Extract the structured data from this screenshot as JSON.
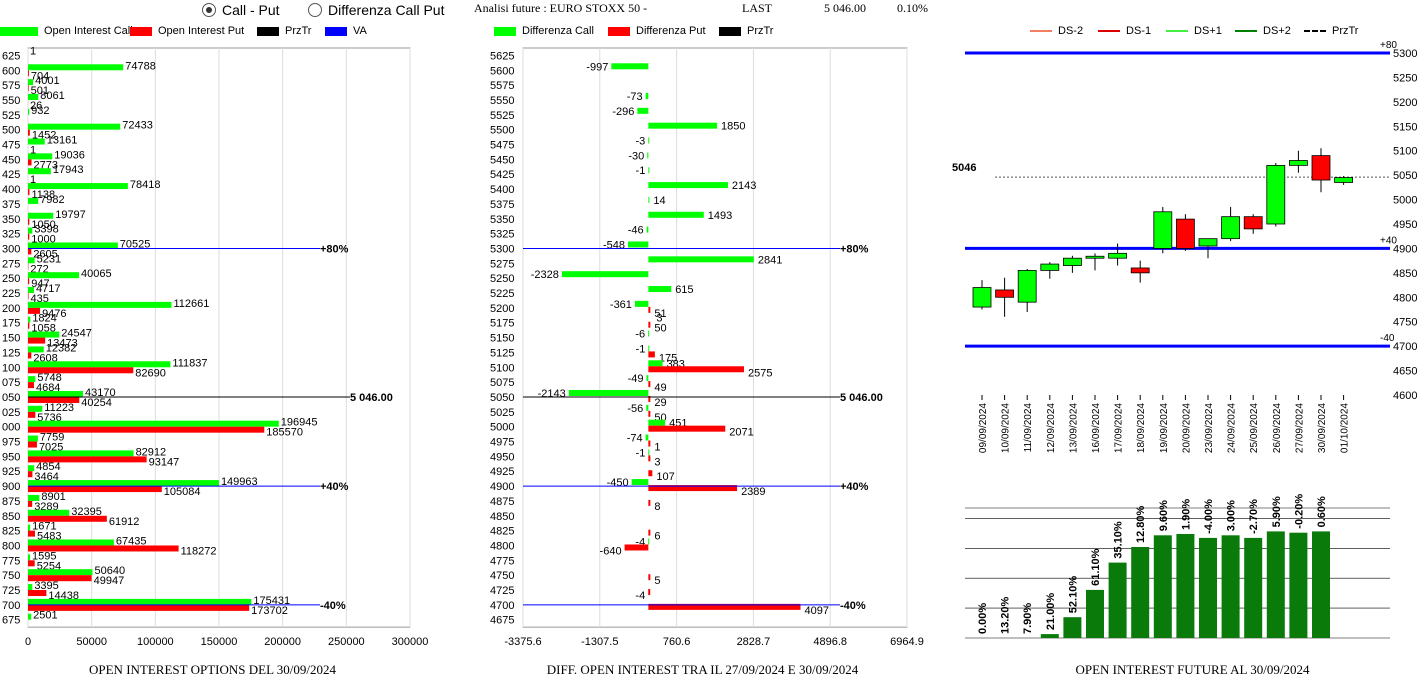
{
  "header": {
    "radio_call_put": "Call - Put",
    "radio_diff": "Differenza Call Put",
    "analysis_label": "Analisi future : EURO STOXX 50 -",
    "last_label": "LAST",
    "last_value": "5 046.00",
    "last_change": "0.10%"
  },
  "legends": {
    "oi": [
      "Open Interest Call",
      "Open Interest Put",
      "PrzTr",
      "VA"
    ],
    "diff": [
      "Differenza Call",
      "Differenza Put",
      "PrzTr"
    ],
    "candle": [
      "DS-2",
      "DS-1",
      "DS+1",
      "DS+2",
      "PrzTr"
    ]
  },
  "colors": {
    "call": "#00ff00",
    "put": "#ff0000",
    "przTr": "#000000",
    "va": "#0000ff",
    "ds_minus2": "#f08060",
    "ds_minus1": "#dd0000",
    "ds_plus1": "#44ee44",
    "ds_plus2": "#008000",
    "bar_future": "#0a7a0a"
  },
  "chart_data": [
    {
      "type": "bar",
      "orientation": "horizontal",
      "title": "OPEN INTEREST OPTIONS DEL 30/09/2024",
      "categories": [
        "625",
        "600",
        "575",
        "550",
        "525",
        "500",
        "475",
        "450",
        "425",
        "400",
        "375",
        "350",
        "325",
        "300",
        "275",
        "250",
        "225",
        "200",
        "175",
        "150",
        "125",
        "100",
        "075",
        "050",
        "025",
        "000",
        "975",
        "950",
        "925",
        "900",
        "875",
        "850",
        "825",
        "800",
        "775",
        "750",
        "725",
        "700",
        "675"
      ],
      "series": [
        {
          "name": "Open Interest Call",
          "values": [
            1,
            74788,
            4001,
            8061,
            932,
            72433,
            13161,
            19036,
            17943,
            78418,
            7982,
            19797,
            3398,
            70525,
            5231,
            40065,
            4717,
            112661,
            1824,
            24547,
            12382,
            111837,
            5748,
            43170,
            11223,
            196945,
            7759,
            82912,
            4854,
            149963,
            8901,
            32395,
            1671,
            67435,
            1595,
            50640,
            3395,
            175431,
            2501
          ]
        },
        {
          "name": "Open Interest Put",
          "values": [
            0,
            704,
            501,
            26,
            0,
            1452,
            1,
            2773,
            1,
            1138,
            0,
            1050,
            1000,
            2605,
            272,
            947,
            435,
            9476,
            1058,
            13473,
            2608,
            82690,
            4684,
            40254,
            5736,
            185570,
            7025,
            93147,
            3464,
            105084,
            3289,
            61912,
            5483,
            118272,
            5254,
            49947,
            14438,
            173702,
            0
          ]
        }
      ],
      "x_ticks": [
        "0",
        "50000",
        "100000",
        "150000",
        "200000",
        "250000",
        "300000"
      ],
      "xlim": [
        0,
        300000
      ],
      "annotations": [
        {
          "label": "+80%",
          "at": "300"
        },
        {
          "label": "5 046.00",
          "at": "050"
        },
        {
          "label": "+40%",
          "at": "900"
        },
        {
          "label": "-40%",
          "at": "700"
        }
      ]
    },
    {
      "type": "bar",
      "orientation": "horizontal",
      "title": "DIFF. OPEN INTEREST TRA IL 27/09/2024 E 30/09/2024",
      "categories": [
        "5625",
        "5600",
        "5575",
        "5550",
        "5525",
        "5500",
        "5475",
        "5450",
        "5425",
        "5400",
        "5375",
        "5350",
        "5325",
        "5300",
        "5275",
        "5250",
        "5225",
        "5200",
        "5175",
        "5150",
        "5125",
        "5100",
        "5075",
        "5050",
        "5025",
        "5000",
        "4975",
        "4950",
        "4925",
        "4900",
        "4875",
        "4850",
        "4825",
        "4800",
        "4775",
        "4750",
        "4725",
        "4700",
        "4675"
      ],
      "series": [
        {
          "name": "Differenza Call",
          "values": [
            null,
            -997,
            null,
            -73,
            -296,
            1850,
            -3,
            -30,
            -1,
            2143,
            14,
            1493,
            -46,
            -548,
            2841,
            -2328,
            615,
            -361,
            null,
            -6,
            -1,
            383,
            -49,
            -2143,
            -56,
            451,
            -74,
            -1,
            null,
            -450,
            null,
            null,
            null,
            -4,
            null,
            null,
            null,
            null,
            null
          ]
        },
        {
          "name": "Differenza Put",
          "values": [
            null,
            null,
            null,
            null,
            null,
            null,
            null,
            null,
            null,
            null,
            null,
            null,
            null,
            null,
            null,
            null,
            null,
            51,
            50,
            null,
            175,
            2575,
            49,
            29,
            50,
            2071,
            1,
            3,
            107,
            2389,
            8,
            null,
            6,
            -640,
            null,
            5,
            -4,
            4097,
            null
          ]
        }
      ],
      "extra_labels": [
        {
          "at": "5175",
          "text": "3"
        }
      ],
      "x_ticks": [
        "-3375.6",
        "-1307.5",
        "760.6",
        "2828.7",
        "4896.8",
        "6964.9"
      ],
      "xlim": [
        -3375.6,
        6964.9
      ],
      "annotations": [
        {
          "label": "+80%",
          "at": "5300"
        },
        {
          "label": "5 046.00",
          "at": "5050"
        },
        {
          "label": "+40%",
          "at": "4900"
        },
        {
          "label": "-40%",
          "at": "4700"
        }
      ]
    },
    {
      "type": "candlestick",
      "categories": [
        "09/09/2024",
        "10/09/2024",
        "11/09/2024",
        "12/09/2024",
        "13/09/2024",
        "16/09/2024",
        "17/09/2024",
        "18/09/2024",
        "19/09/2024",
        "20/09/2024",
        "23/09/2024",
        "24/09/2024",
        "25/09/2024",
        "26/09/2024",
        "27/09/2024",
        "30/09/2024",
        "01/10/2024"
      ],
      "ohlc": [
        [
          4780,
          4835,
          4775,
          4820
        ],
        [
          4815,
          4840,
          4760,
          4800
        ],
        [
          4790,
          4858,
          4770,
          4855
        ],
        [
          4855,
          4872,
          4838,
          4868
        ],
        [
          4865,
          4885,
          4850,
          4880
        ],
        [
          4882,
          4890,
          4855,
          4884
        ],
        [
          4880,
          4910,
          4865,
          4890
        ],
        [
          4860,
          4875,
          4830,
          4850
        ],
        [
          4900,
          4985,
          4890,
          4975
        ],
        [
          4960,
          4970,
          4895,
          4900
        ],
        [
          4905,
          4920,
          4880,
          4920
        ],
        [
          4920,
          4985,
          4915,
          4965
        ],
        [
          4965,
          4970,
          4930,
          4940
        ],
        [
          4950,
          5075,
          4945,
          5070
        ],
        [
          5070,
          5100,
          5055,
          5080
        ],
        [
          5090,
          5105,
          5015,
          5040
        ],
        [
          5035,
          5048,
          5030,
          5045
        ]
      ],
      "y_ticks": [
        "5300",
        "5250",
        "5200",
        "5150",
        "5100",
        "5050",
        "5000",
        "4950",
        "4900",
        "4850",
        "4800",
        "4750",
        "4700",
        "4650",
        "4600"
      ],
      "ylim": [
        4600,
        5300
      ],
      "price_label": "5046",
      "price": 5046,
      "levels": [
        {
          "label": "+80",
          "value": 5300
        },
        {
          "label": "+40",
          "value": 4900
        },
        {
          "label": "-40",
          "value": 4700
        }
      ]
    },
    {
      "type": "bar",
      "title": "OPEN INTEREST FUTURE AL 30/09/2024",
      "categories": [
        "09/09/2024",
        "10/09/2024",
        "11/09/2024",
        "12/09/2024",
        "13/09/2024",
        "16/09/2024",
        "17/09/2024",
        "18/09/2024",
        "19/09/2024",
        "20/09/2024",
        "23/09/2024",
        "24/09/2024",
        "25/09/2024",
        "26/09/2024",
        "27/09/2024",
        "30/09/2024",
        "01/10/2024"
      ],
      "labels": [
        "0.00%",
        "13.20%",
        "7.90%",
        "21.00%",
        "52.10%",
        "61.10%",
        "35.10%",
        "12.80%",
        "9.60%",
        "1.90%",
        "-4.00%",
        "3.00%",
        "-2.70%",
        "5.90%",
        "-0.20%",
        "0.60%",
        ""
      ],
      "values": [
        0,
        0,
        0,
        0.03,
        0.16,
        0.37,
        0.58,
        0.7,
        0.79,
        0.8,
        0.77,
        0.79,
        0.77,
        0.82,
        0.81,
        0.82,
        0
      ],
      "grid": true
    }
  ]
}
